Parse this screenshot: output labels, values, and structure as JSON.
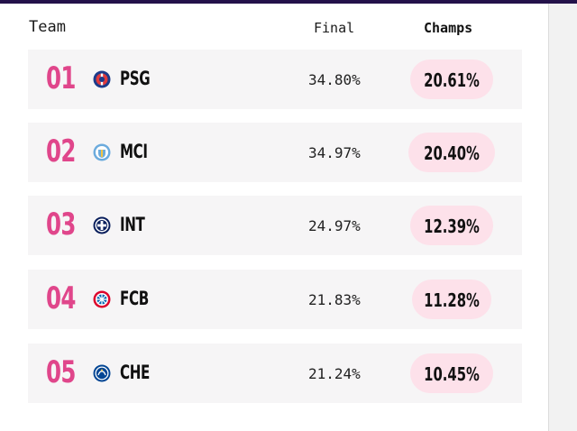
{
  "header": {
    "team": "Team",
    "final": "Final",
    "champs": "Champs"
  },
  "rows": [
    {
      "rank": "01",
      "team": "PSG",
      "crest_icon": "psg-crest-icon",
      "final": "34.80%",
      "champs": "20.61%"
    },
    {
      "rank": "02",
      "team": "MCI",
      "crest_icon": "man-city-crest-icon",
      "final": "34.97%",
      "champs": "20.40%"
    },
    {
      "rank": "03",
      "team": "INT",
      "crest_icon": "inter-crest-icon",
      "final": "24.97%",
      "champs": "12.39%"
    },
    {
      "rank": "04",
      "team": "FCB",
      "crest_icon": "bayern-crest-icon",
      "final": "21.83%",
      "champs": "11.28%"
    },
    {
      "rank": "05",
      "team": "CHE",
      "crest_icon": "chelsea-crest-icon",
      "final": "21.24%",
      "champs": "10.45%"
    }
  ],
  "colors": {
    "rank": "#e0468b",
    "row_bg": "#f6f5f6",
    "pill_bg": "#fde1ea",
    "topbar": "#24124a"
  }
}
